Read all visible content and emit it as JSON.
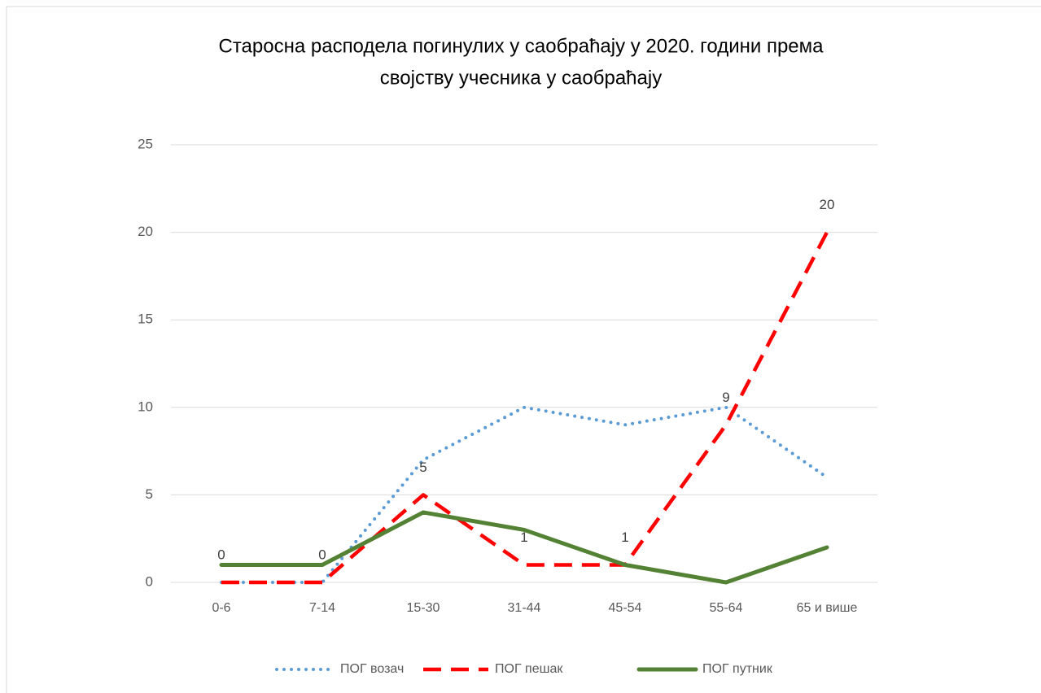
{
  "chart_data": {
    "type": "line",
    "title": [
      "Старосна расподела погинулих у саобраћају у 2020. години према",
      "својству учесника у саобраћају"
    ],
    "categories": [
      "0-6",
      "7-14",
      "15-30",
      "31-44",
      "45-54",
      "55-64",
      "65 и више"
    ],
    "series": [
      {
        "name": "ПОГ возач",
        "color": "#5b9bd5",
        "style": "dotted",
        "values": [
          0,
          0,
          7,
          10,
          9,
          10,
          6
        ]
      },
      {
        "name": "ПОГ пешак",
        "color": "#ff0000",
        "style": "dashed",
        "data_labels": true,
        "values": [
          0,
          0,
          5,
          1,
          1,
          9,
          20
        ]
      },
      {
        "name": "ПОГ путник",
        "color": "#548235",
        "style": "solid",
        "values": [
          1,
          1,
          4,
          3,
          1,
          0,
          2
        ]
      }
    ],
    "ylim": [
      0,
      25
    ],
    "yticks": [
      0,
      5,
      10,
      15,
      20,
      25
    ],
    "grid": true,
    "legend": "bottom"
  }
}
